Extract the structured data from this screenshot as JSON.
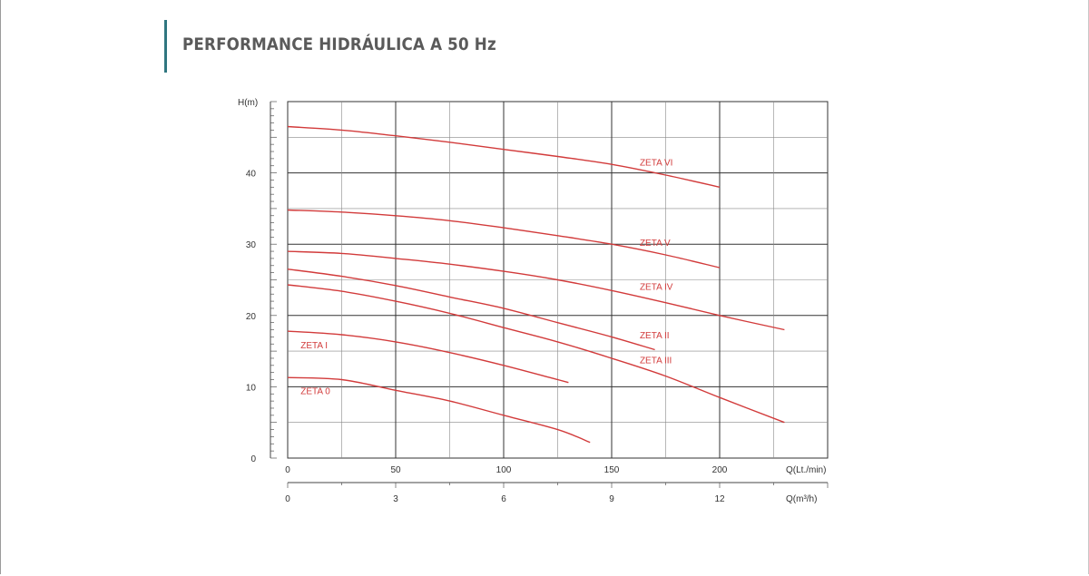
{
  "header": {
    "title": "PERFORMANCE HIDRÁULICA A 50 Hz",
    "accent_color": "#2f7680"
  },
  "chart_data": {
    "type": "line",
    "title": "PERFORMANCE HIDRÁULICA A 50 Hz",
    "ylabel": "H(m)",
    "xlabel": "Q(Lt./min)",
    "x2label": "Q(m³/h)",
    "xlim": [
      0,
      250
    ],
    "ylim": [
      0,
      50
    ],
    "x_ticks": [
      0,
      50,
      100,
      150,
      200
    ],
    "x_tick_labels": [
      "0",
      "50",
      "100",
      "150",
      "200"
    ],
    "x2_ticks": [
      0,
      50,
      100,
      150,
      200
    ],
    "x2_tick_labels": [
      "0",
      "3",
      "6",
      "9",
      "12"
    ],
    "y_ticks": [
      0,
      10,
      20,
      30,
      40
    ],
    "y_tick_labels": [
      "0",
      "10",
      "20",
      "30",
      "40"
    ],
    "grid": true,
    "legend": "inline labels",
    "line_color": "#d23b3b",
    "series": [
      {
        "name": "ZETA 0",
        "label_at": [
          6,
          9
        ],
        "points": [
          [
            0,
            11.3
          ],
          [
            25,
            11
          ],
          [
            50,
            9.5
          ],
          [
            75,
            8
          ],
          [
            100,
            6
          ],
          [
            125,
            4
          ],
          [
            140,
            2.2
          ]
        ]
      },
      {
        "name": "ZETA I",
        "label_at": [
          6,
          15.4
        ],
        "points": [
          [
            0,
            17.8
          ],
          [
            25,
            17.3
          ],
          [
            50,
            16.3
          ],
          [
            75,
            14.8
          ],
          [
            100,
            13
          ],
          [
            125,
            11
          ],
          [
            130,
            10.6
          ]
        ]
      },
      {
        "name": "ZETA II",
        "label_at": [
          163,
          16.8
        ],
        "points": [
          [
            0,
            26.5
          ],
          [
            25,
            25.5
          ],
          [
            50,
            24.2
          ],
          [
            75,
            22.6
          ],
          [
            100,
            21
          ],
          [
            125,
            19
          ],
          [
            150,
            17
          ],
          [
            170,
            15.2
          ]
        ]
      },
      {
        "name": "ZETA III",
        "label_at": [
          163,
          13.3
        ],
        "points": [
          [
            0,
            24.3
          ],
          [
            25,
            23.4
          ],
          [
            50,
            22
          ],
          [
            75,
            20.3
          ],
          [
            100,
            18.3
          ],
          [
            125,
            16.3
          ],
          [
            150,
            14
          ],
          [
            175,
            11.5
          ],
          [
            200,
            8.5
          ],
          [
            230,
            5
          ]
        ]
      },
      {
        "name": "ZETA IV",
        "label_at": [
          163,
          23.6
        ],
        "points": [
          [
            0,
            29
          ],
          [
            25,
            28.7
          ],
          [
            50,
            28
          ],
          [
            75,
            27.2
          ],
          [
            100,
            26.2
          ],
          [
            125,
            25
          ],
          [
            150,
            23.5
          ],
          [
            175,
            21.8
          ],
          [
            200,
            20
          ],
          [
            230,
            18
          ]
        ]
      },
      {
        "name": "ZETA V",
        "label_at": [
          163,
          29.8
        ],
        "points": [
          [
            0,
            34.8
          ],
          [
            25,
            34.5
          ],
          [
            50,
            34
          ],
          [
            75,
            33.3
          ],
          [
            100,
            32.3
          ],
          [
            125,
            31.2
          ],
          [
            150,
            30
          ],
          [
            175,
            28.5
          ],
          [
            200,
            26.7
          ]
        ]
      },
      {
        "name": "ZETA VI",
        "label_at": [
          163,
          41
        ],
        "points": [
          [
            0,
            46.5
          ],
          [
            25,
            46
          ],
          [
            50,
            45.2
          ],
          [
            75,
            44.3
          ],
          [
            100,
            43.3
          ],
          [
            125,
            42.3
          ],
          [
            150,
            41.2
          ],
          [
            175,
            39.7
          ],
          [
            200,
            38
          ]
        ]
      }
    ]
  }
}
